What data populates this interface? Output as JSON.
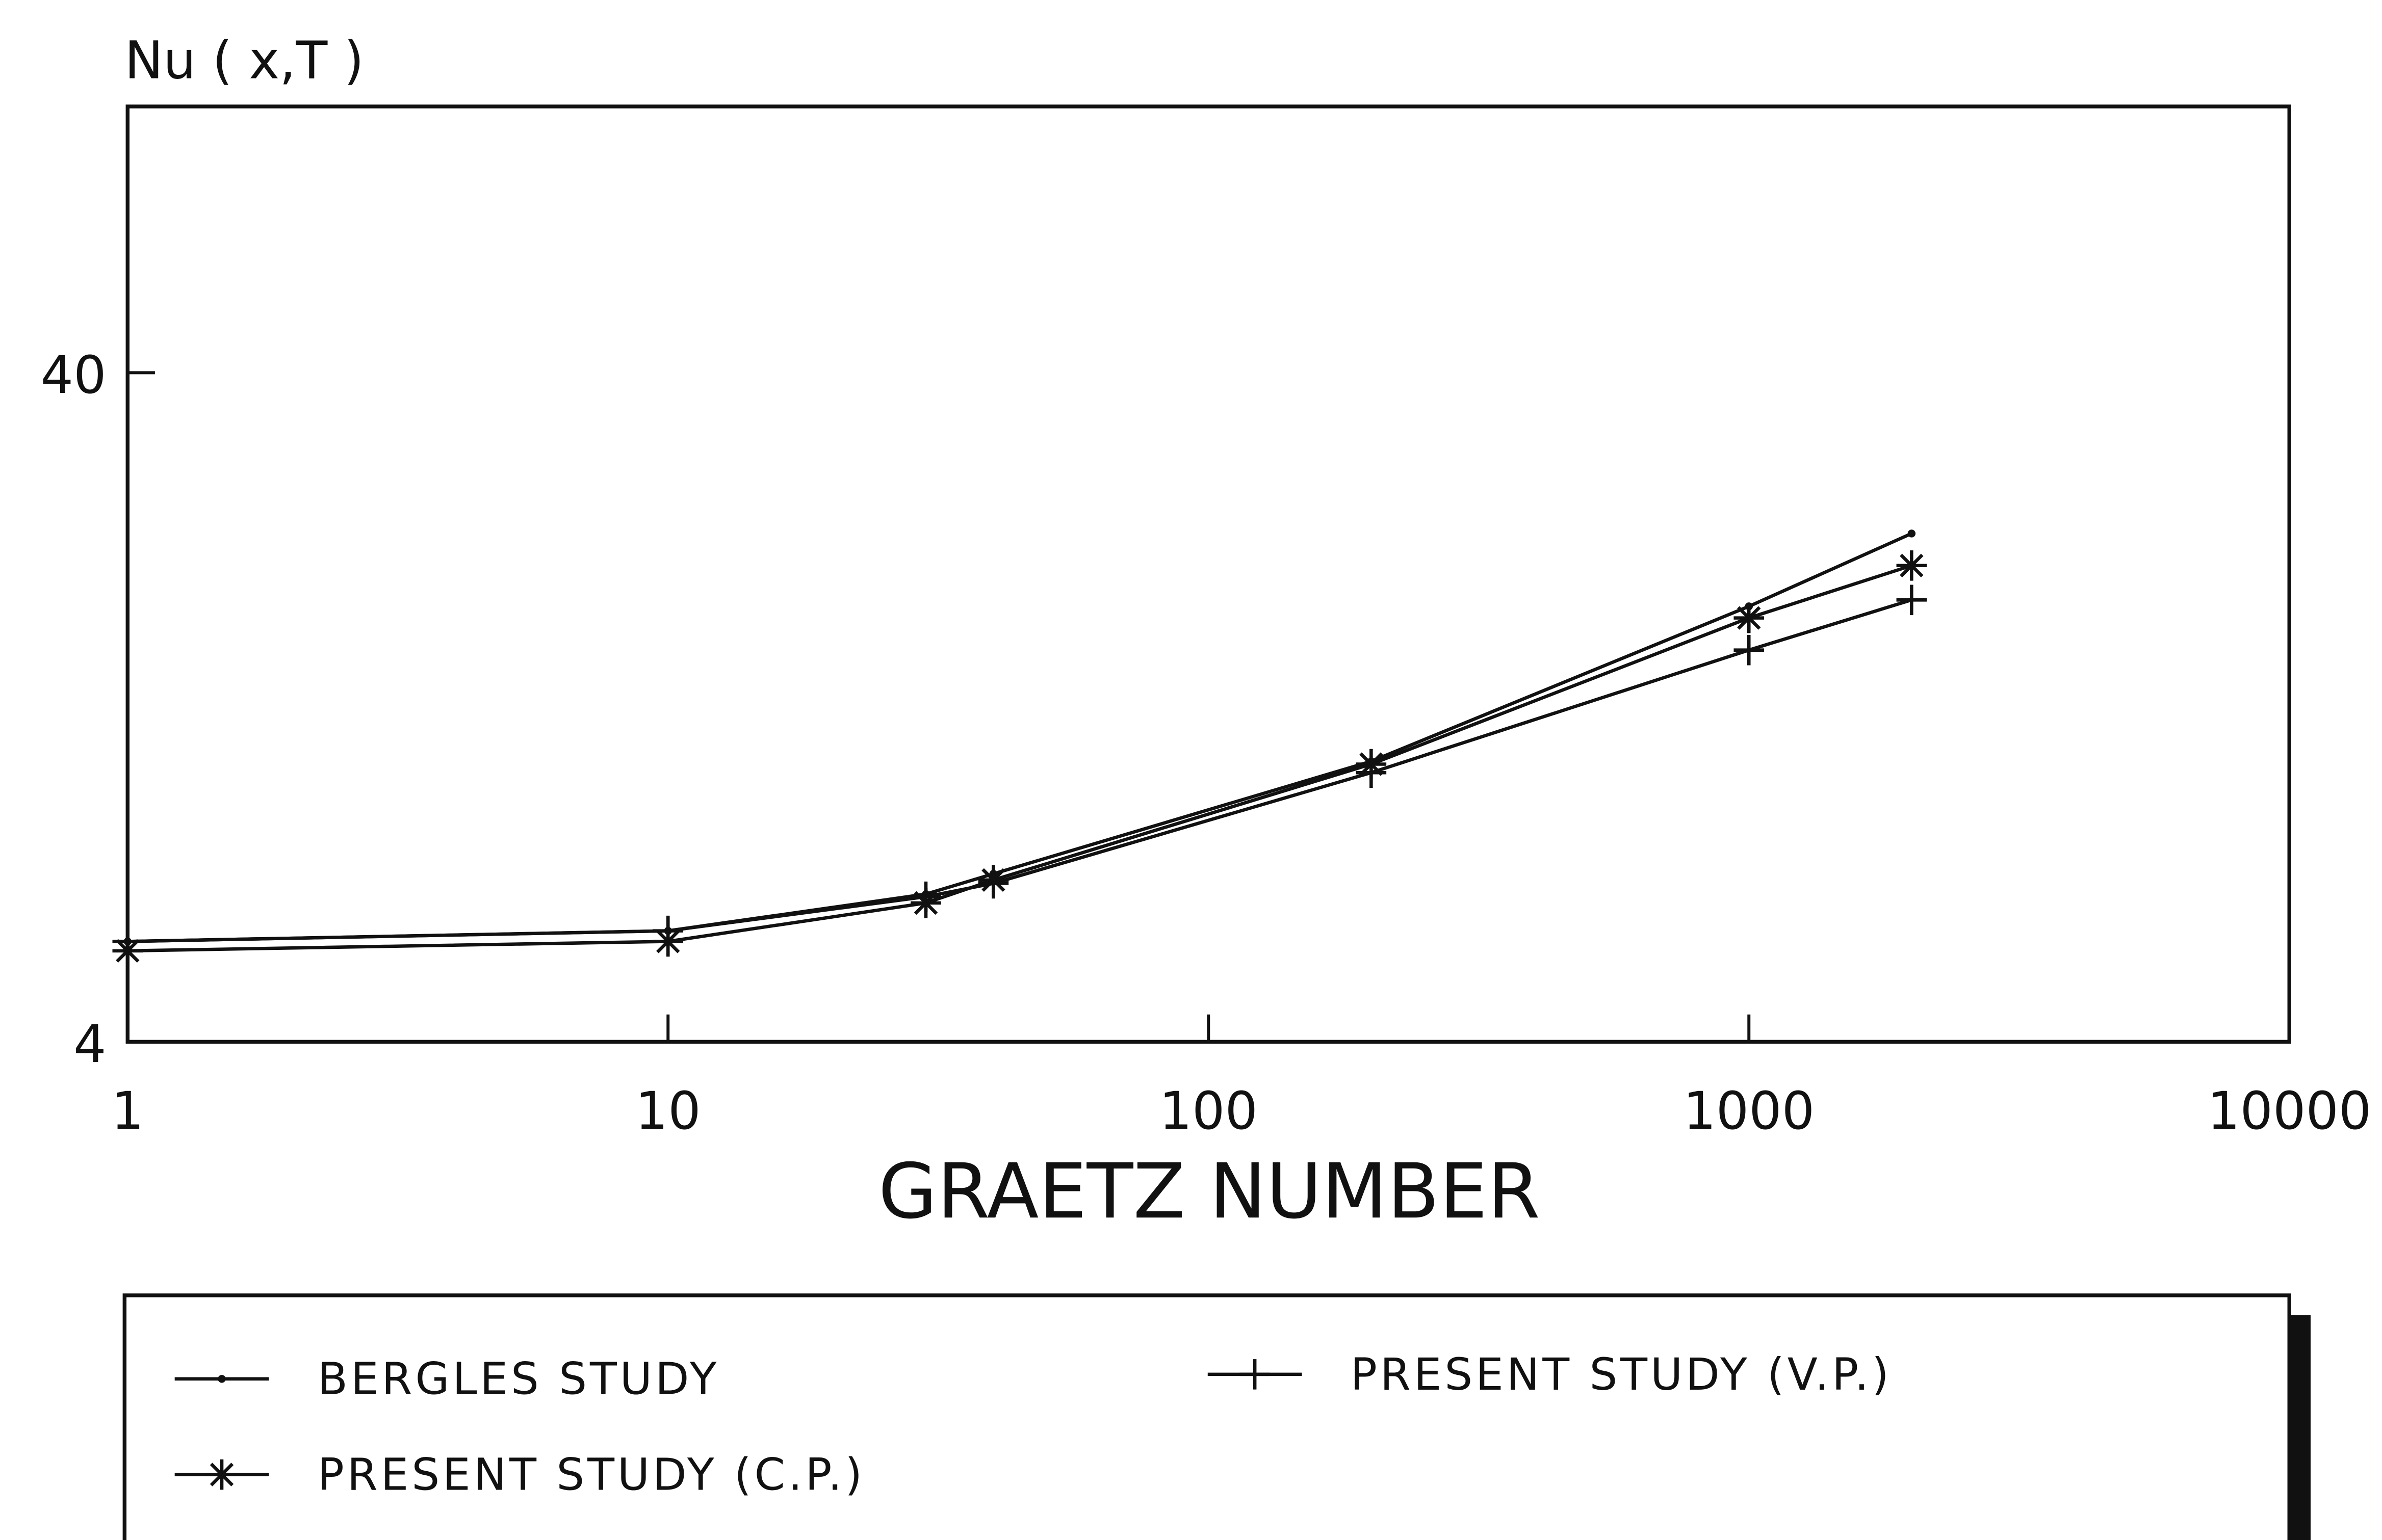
{
  "chart_data": {
    "type": "line",
    "y_label": "Nu ( x,T )",
    "x_label": "GRAETZ NUMBER",
    "x": [
      1,
      10,
      30,
      40,
      200,
      1000,
      2000
    ],
    "series": [
      {
        "name": "BERGLES  STUDY",
        "color": "#111111",
        "marker": "dot",
        "values": [
          5.65,
          5.86,
          6.65,
          7.13,
          10.5,
          17.9,
          23.0
        ]
      },
      {
        "name": "PRESENT STUDY (V.P.)",
        "color": "#111111",
        "marker": "plus",
        "values": [
          5.65,
          5.86,
          6.59,
          6.9,
          10.1,
          15.4,
          18.3
        ]
      },
      {
        "name": "PRESENT STUDY (C.P.)",
        "color": "#111111",
        "marker": "star",
        "values": [
          5.47,
          5.65,
          6.45,
          6.98,
          10.4,
          17.2,
          20.6
        ]
      }
    ],
    "xlim": [
      1,
      10000
    ],
    "ylim": [
      4,
      100
    ],
    "xticks": [
      1,
      10,
      100,
      1000,
      10000
    ],
    "yticks": [
      4,
      40
    ],
    "xscale": "log",
    "yscale": "log",
    "grid": false
  }
}
